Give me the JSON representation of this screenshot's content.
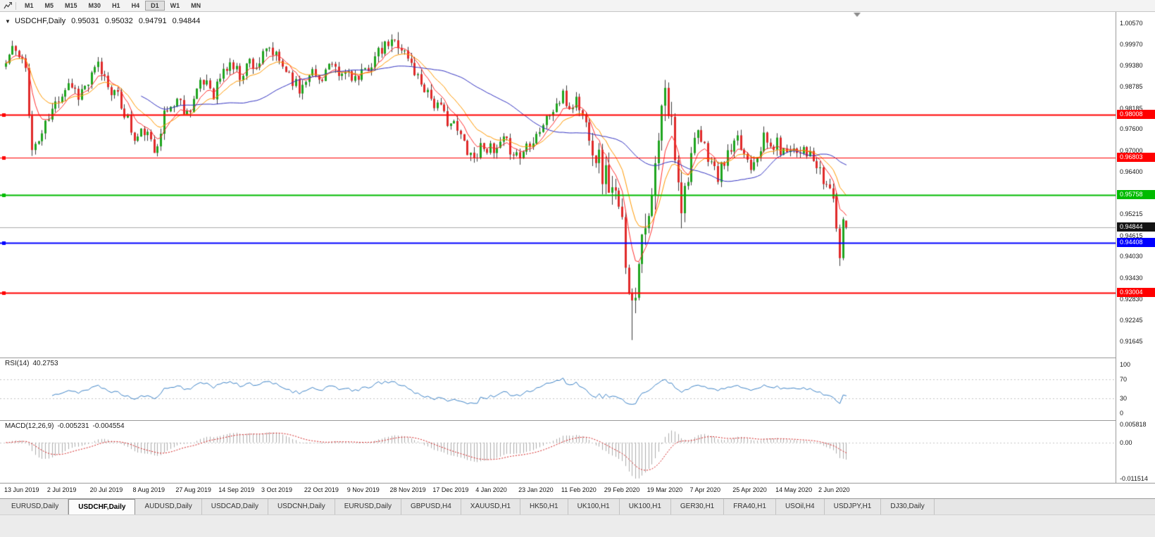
{
  "toolbar": {
    "timeframes": [
      "M1",
      "M5",
      "M15",
      "M30",
      "H1",
      "H4",
      "D1",
      "W1",
      "MN"
    ],
    "active_timeframe": "D1"
  },
  "chart": {
    "symbol": "USDCHF,Daily",
    "open": "0.95031",
    "high": "0.95032",
    "low": "0.94791",
    "close": "0.94844"
  },
  "rsi": {
    "label": "RSI(14)",
    "value": "40.2753",
    "period": 14,
    "ticks": [
      "100",
      "70",
      "30",
      "0"
    ],
    "level_lines": [
      70,
      30
    ],
    "line_color": "#3E84C8"
  },
  "macd": {
    "label": "MACD(12,26,9)",
    "main_value": "-0.005231",
    "signal_value": "-0.004554",
    "params": [
      12,
      26,
      9
    ],
    "ticks": [
      "0.005818",
      "0.00",
      "-0.011514"
    ],
    "max": 0.005818,
    "min": -0.011514,
    "histogram_color": "#ADADAD",
    "signal_color": "#D42020"
  },
  "tabs": [
    "EURUSD,Daily",
    "USDCHF,Daily",
    "AUDUSD,Daily",
    "USDCAD,Daily",
    "USDCNH,Daily",
    "EURUSD,Daily",
    "GBPUSD,H4",
    "XAUUSD,H1",
    "HK50,H1",
    "UK100,H1",
    "UK100,H1",
    "GER30,H1",
    "FRA40,H1",
    "USOil,H4",
    "USDJPY,H1",
    "DJ30,Daily"
  ],
  "active_tab_index": 1,
  "chart_data": {
    "type": "candlestick",
    "symbol": "USDCHF",
    "timeframe": "D1",
    "candle_count": 256,
    "current_price": 0.94844,
    "last_ohlc": {
      "open": 0.95031,
      "high": 0.95032,
      "low": 0.94791,
      "close": 0.94844
    },
    "x_axis": {
      "labels": [
        "13 Jun 2019",
        "2 Jul 2019",
        "20 Jul 2019",
        "8 Aug 2019",
        "27 Aug 2019",
        "14 Sep 2019",
        "3 Oct 2019",
        "22 Oct 2019",
        "9 Nov 2019",
        "28 Nov 2019",
        "17 Dec 2019",
        "4 Jan 2020",
        "23 Jan 2020",
        "11 Feb 2020",
        "29 Feb 2020",
        "19 Mar 2020",
        "7 Apr 2020",
        "25 Apr 2020",
        "14 May 2020",
        "2 Jun 2020"
      ],
      "candles_per_label": 13
    },
    "y_axis": {
      "top": 1.0057,
      "bottom": 0.91645,
      "ticks": [
        "1.00570",
        "0.99970",
        "0.99380",
        "0.98785",
        "0.98185",
        "0.97600",
        "0.97000",
        "0.96400",
        "0.95815",
        "0.95215",
        "0.94615",
        "0.94030",
        "0.93430",
        "0.92830",
        "0.92245",
        "0.91645"
      ]
    },
    "levels": [
      {
        "price": 0.98008,
        "label": "0.98008",
        "color": "#FF0000",
        "width": 2
      },
      {
        "price": 0.96803,
        "label": "0.96803",
        "color": "#FF0000",
        "width": 1
      },
      {
        "price": 0.95758,
        "label": "0.95758",
        "color": "#00BB00",
        "width": 2
      },
      {
        "price": 0.94408,
        "label": "0.94408",
        "color": "#0000FF",
        "width": 2
      },
      {
        "price": 0.93004,
        "label": "0.93004",
        "color": "#FF0000",
        "width": 2
      }
    ],
    "colors": {
      "up": "#1FA51F",
      "down": "#E02A2A",
      "wick": "#3C3C3C",
      "ma_fast": "#FF3030",
      "ma_mid": "#FF9900",
      "ma_slow": "#3333C2",
      "current_price_line": "#ABABAB",
      "current_price_badge": "#141414"
    },
    "moving_averages": [
      {
        "type": "ema",
        "period": 7,
        "color_key": "ma_fast"
      },
      {
        "type": "ema",
        "period": 15,
        "color_key": "ma_mid"
      },
      {
        "type": "sma",
        "period": 42,
        "color_key": "ma_slow"
      }
    ],
    "close_anchors": [
      [
        0,
        0.9945
      ],
      [
        2,
        0.9992
      ],
      [
        4,
        0.9958
      ],
      [
        6,
        0.993
      ],
      [
        8,
        0.97
      ],
      [
        10,
        0.9728
      ],
      [
        13,
        0.979
      ],
      [
        16,
        0.985
      ],
      [
        19,
        0.9893
      ],
      [
        22,
        0.9858
      ],
      [
        25,
        0.9888
      ],
      [
        28,
        0.9938
      ],
      [
        31,
        0.9888
      ],
      [
        34,
        0.9845
      ],
      [
        37,
        0.9788
      ],
      [
        39,
        0.9725
      ],
      [
        42,
        0.9758
      ],
      [
        45,
        0.9698
      ],
      [
        48,
        0.9798
      ],
      [
        52,
        0.9845
      ],
      [
        55,
        0.9805
      ],
      [
        58,
        0.9868
      ],
      [
        61,
        0.9898
      ],
      [
        63,
        0.9862
      ],
      [
        65,
        0.9905
      ],
      [
        68,
        0.9945
      ],
      [
        71,
        0.9912
      ],
      [
        74,
        0.9952
      ],
      [
        76,
        0.9938
      ],
      [
        80,
        0.9983
      ],
      [
        83,
        0.9948
      ],
      [
        86,
        0.9918
      ],
      [
        89,
        0.9868
      ],
      [
        92,
        0.9928
      ],
      [
        95,
        0.9898
      ],
      [
        98,
        0.9938
      ],
      [
        101,
        0.9905
      ],
      [
        104,
        0.9923
      ],
      [
        107,
        0.9892
      ],
      [
        110,
        0.9938
      ],
      [
        113,
        0.9968
      ],
      [
        116,
        0.9998
      ],
      [
        119,
        1.0005
      ],
      [
        122,
        0.9958
      ],
      [
        125,
        0.9905
      ],
      [
        128,
        0.9868
      ],
      [
        130,
        0.9832
      ],
      [
        133,
        0.98
      ],
      [
        136,
        0.9768
      ],
      [
        139,
        0.9722
      ],
      [
        142,
        0.968
      ],
      [
        145,
        0.9722
      ],
      [
        148,
        0.9688
      ],
      [
        151,
        0.9722
      ],
      [
        154,
        0.97
      ],
      [
        156,
        0.9682
      ],
      [
        158,
        0.9718
      ],
      [
        161,
        0.9748
      ],
      [
        164,
        0.9788
      ],
      [
        167,
        0.9828
      ],
      [
        169,
        0.9848
      ],
      [
        171,
        0.9818
      ],
      [
        173,
        0.9843
      ],
      [
        175,
        0.9798
      ],
      [
        177,
        0.9748
      ],
      [
        179,
        0.9698
      ],
      [
        181,
        0.9642
      ],
      [
        183,
        0.9612
      ],
      [
        185,
        0.9555
      ],
      [
        187,
        0.9482
      ],
      [
        189,
        0.934
      ],
      [
        190,
        0.9255
      ],
      [
        191,
        0.9315
      ],
      [
        192,
        0.942
      ],
      [
        193,
        0.948
      ],
      [
        194,
        0.9522
      ],
      [
        195,
        0.9478
      ],
      [
        196,
        0.956
      ],
      [
        197,
        0.9642
      ],
      [
        198,
        0.972
      ],
      [
        199,
        0.98
      ],
      [
        200,
        0.9855
      ],
      [
        201,
        0.9808
      ],
      [
        202,
        0.9768
      ],
      [
        203,
        0.97
      ],
      [
        204,
        0.964
      ],
      [
        205,
        0.956
      ],
      [
        206,
        0.9588
      ],
      [
        207,
        0.9632
      ],
      [
        208,
        0.969
      ],
      [
        210,
        0.9742
      ],
      [
        212,
        0.9705
      ],
      [
        214,
        0.9668
      ],
      [
        216,
        0.9622
      ],
      [
        218,
        0.9672
      ],
      [
        220,
        0.9698
      ],
      [
        222,
        0.9722
      ],
      [
        224,
        0.9692
      ],
      [
        226,
        0.9662
      ],
      [
        228,
        0.9698
      ],
      [
        230,
        0.9732
      ],
      [
        232,
        0.9708
      ],
      [
        234,
        0.9718
      ],
      [
        236,
        0.9692
      ],
      [
        238,
        0.9718
      ],
      [
        240,
        0.9698
      ],
      [
        242,
        0.9715
      ],
      [
        244,
        0.9682
      ],
      [
        246,
        0.9652
      ],
      [
        248,
        0.9612
      ],
      [
        250,
        0.9592
      ],
      [
        251,
        0.9575
      ]
    ],
    "tail_candles": [
      {
        "i": 252,
        "o": 0.9575,
        "h": 0.9581,
        "l": 0.9472,
        "c": 0.9481
      },
      {
        "i": 253,
        "o": 0.9481,
        "h": 0.9492,
        "l": 0.9376,
        "c": 0.9398
      },
      {
        "i": 254,
        "o": 0.9398,
        "h": 0.9513,
        "l": 0.9392,
        "c": 0.9507
      },
      {
        "i": 255,
        "o": 0.95031,
        "h": 0.95032,
        "l": 0.94791,
        "c": 0.94844
      }
    ],
    "wick_overrides": [
      {
        "i": 2,
        "h": 1.0008
      },
      {
        "i": 119,
        "h": 1.0032
      },
      {
        "i": 190,
        "l": 0.9168
      },
      {
        "i": 200,
        "h": 0.9898
      }
    ],
    "generation": {
      "seed": 11,
      "base_vol": 0.0026,
      "base_wick": 0.0018,
      "crash_range": [
        178,
        206
      ],
      "crash_mult": 2.4
    }
  }
}
